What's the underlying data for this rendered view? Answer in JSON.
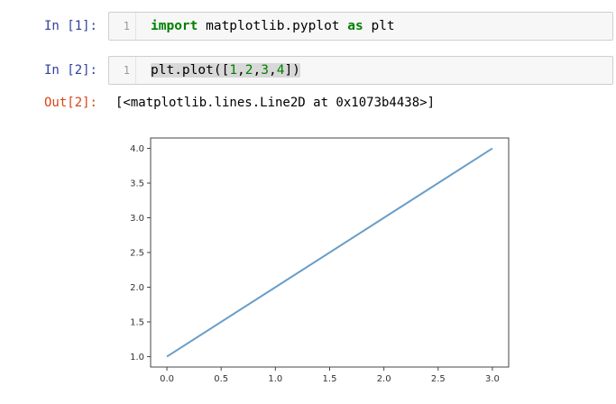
{
  "cells": [
    {
      "prompt": "In [1]:",
      "line_number": "1",
      "code": {
        "keyword1": "import",
        "module": " matplotlib.pyplot ",
        "keyword2": "as",
        "alias": " plt"
      }
    },
    {
      "prompt": "In [2]:",
      "line_number": "1",
      "code": {
        "call_open": "plt.plot([",
        "n1": "1",
        "c1": ",",
        "n2": "2",
        "c2": ",",
        "n3": "3",
        "c3": ",",
        "n4": "4",
        "call_close": "])"
      }
    }
  ],
  "output": {
    "prompt": "Out[2]:",
    "text": "[<matplotlib.lines.Line2D at 0x1073b4438>]"
  },
  "chart_data": {
    "type": "line",
    "x": [
      0,
      1,
      2,
      3
    ],
    "series": [
      {
        "values": [
          1,
          2,
          3,
          4
        ],
        "color": "#6a9ec8"
      }
    ],
    "xlim": [
      -0.15,
      3.15
    ],
    "ylim": [
      0.85,
      4.15
    ],
    "xticks": [
      "0.0",
      "0.5",
      "1.0",
      "1.5",
      "2.0",
      "2.5",
      "3.0"
    ],
    "xtick_values": [
      0,
      0.5,
      1.0,
      1.5,
      2.0,
      2.5,
      3.0
    ],
    "yticks": [
      "1.0",
      "1.5",
      "2.0",
      "2.5",
      "3.0",
      "3.5",
      "4.0"
    ],
    "ytick_values": [
      1.0,
      1.5,
      2.0,
      2.5,
      3.0,
      3.5,
      4.0
    ],
    "grid": false
  }
}
